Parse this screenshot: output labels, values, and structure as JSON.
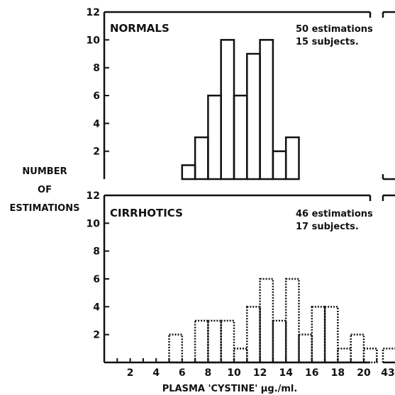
{
  "shared": {
    "ylabel": [
      "NUMBER",
      "OF",
      "ESTIMATIONS"
    ],
    "xlabel": "PLASMA 'CYSTINE' µg./ml.",
    "y_ticks": [
      12,
      10,
      8,
      6,
      4,
      2
    ],
    "x_ticks": [
      2,
      4,
      6,
      8,
      10,
      12,
      14,
      16,
      18,
      20
    ],
    "x_tick_break": 43
  },
  "chart_data": [
    {
      "type": "bar",
      "title": "NORMALS",
      "note_line1": "50 estimations",
      "note_line2": "15 subjects.",
      "bar_style": "solid",
      "bin_width": 1,
      "xlim": [
        0,
        21.5
      ],
      "ylim": [
        0,
        12
      ],
      "bins": [
        {
          "x": 6,
          "value": 1
        },
        {
          "x": 7,
          "value": 3
        },
        {
          "x": 8,
          "value": 6
        },
        {
          "x": 9,
          "value": 10
        },
        {
          "x": 10,
          "value": 6
        },
        {
          "x": 11,
          "value": 9
        },
        {
          "x": 12,
          "value": 10
        },
        {
          "x": 13,
          "value": 2
        },
        {
          "x": 14,
          "value": 3
        }
      ]
    },
    {
      "type": "bar",
      "title": "CIRRHOTICS",
      "note_line1": "46 estimations",
      "note_line2": "17 subjects.",
      "bar_style": "dotted",
      "bin_width": 1,
      "xlim": [
        0,
        21.5
      ],
      "ylim": [
        0,
        12
      ],
      "bins": [
        {
          "x": 5,
          "value": 2
        },
        {
          "x": 6,
          "value": 0
        },
        {
          "x": 7,
          "value": 3
        },
        {
          "x": 8,
          "value": 3
        },
        {
          "x": 9,
          "value": 3
        },
        {
          "x": 10,
          "value": 1
        },
        {
          "x": 11,
          "value": 4
        },
        {
          "x": 12,
          "value": 6
        },
        {
          "x": 13,
          "value": 3
        },
        {
          "x": 14,
          "value": 6
        },
        {
          "x": 15,
          "value": 2
        },
        {
          "x": 16,
          "value": 4
        },
        {
          "x": 17,
          "value": 4
        },
        {
          "x": 18,
          "value": 1
        },
        {
          "x": 19,
          "value": 2
        },
        {
          "x": 20,
          "value": 1
        }
      ],
      "break_bins": [
        {
          "x": 43,
          "value": 1
        }
      ]
    }
  ]
}
